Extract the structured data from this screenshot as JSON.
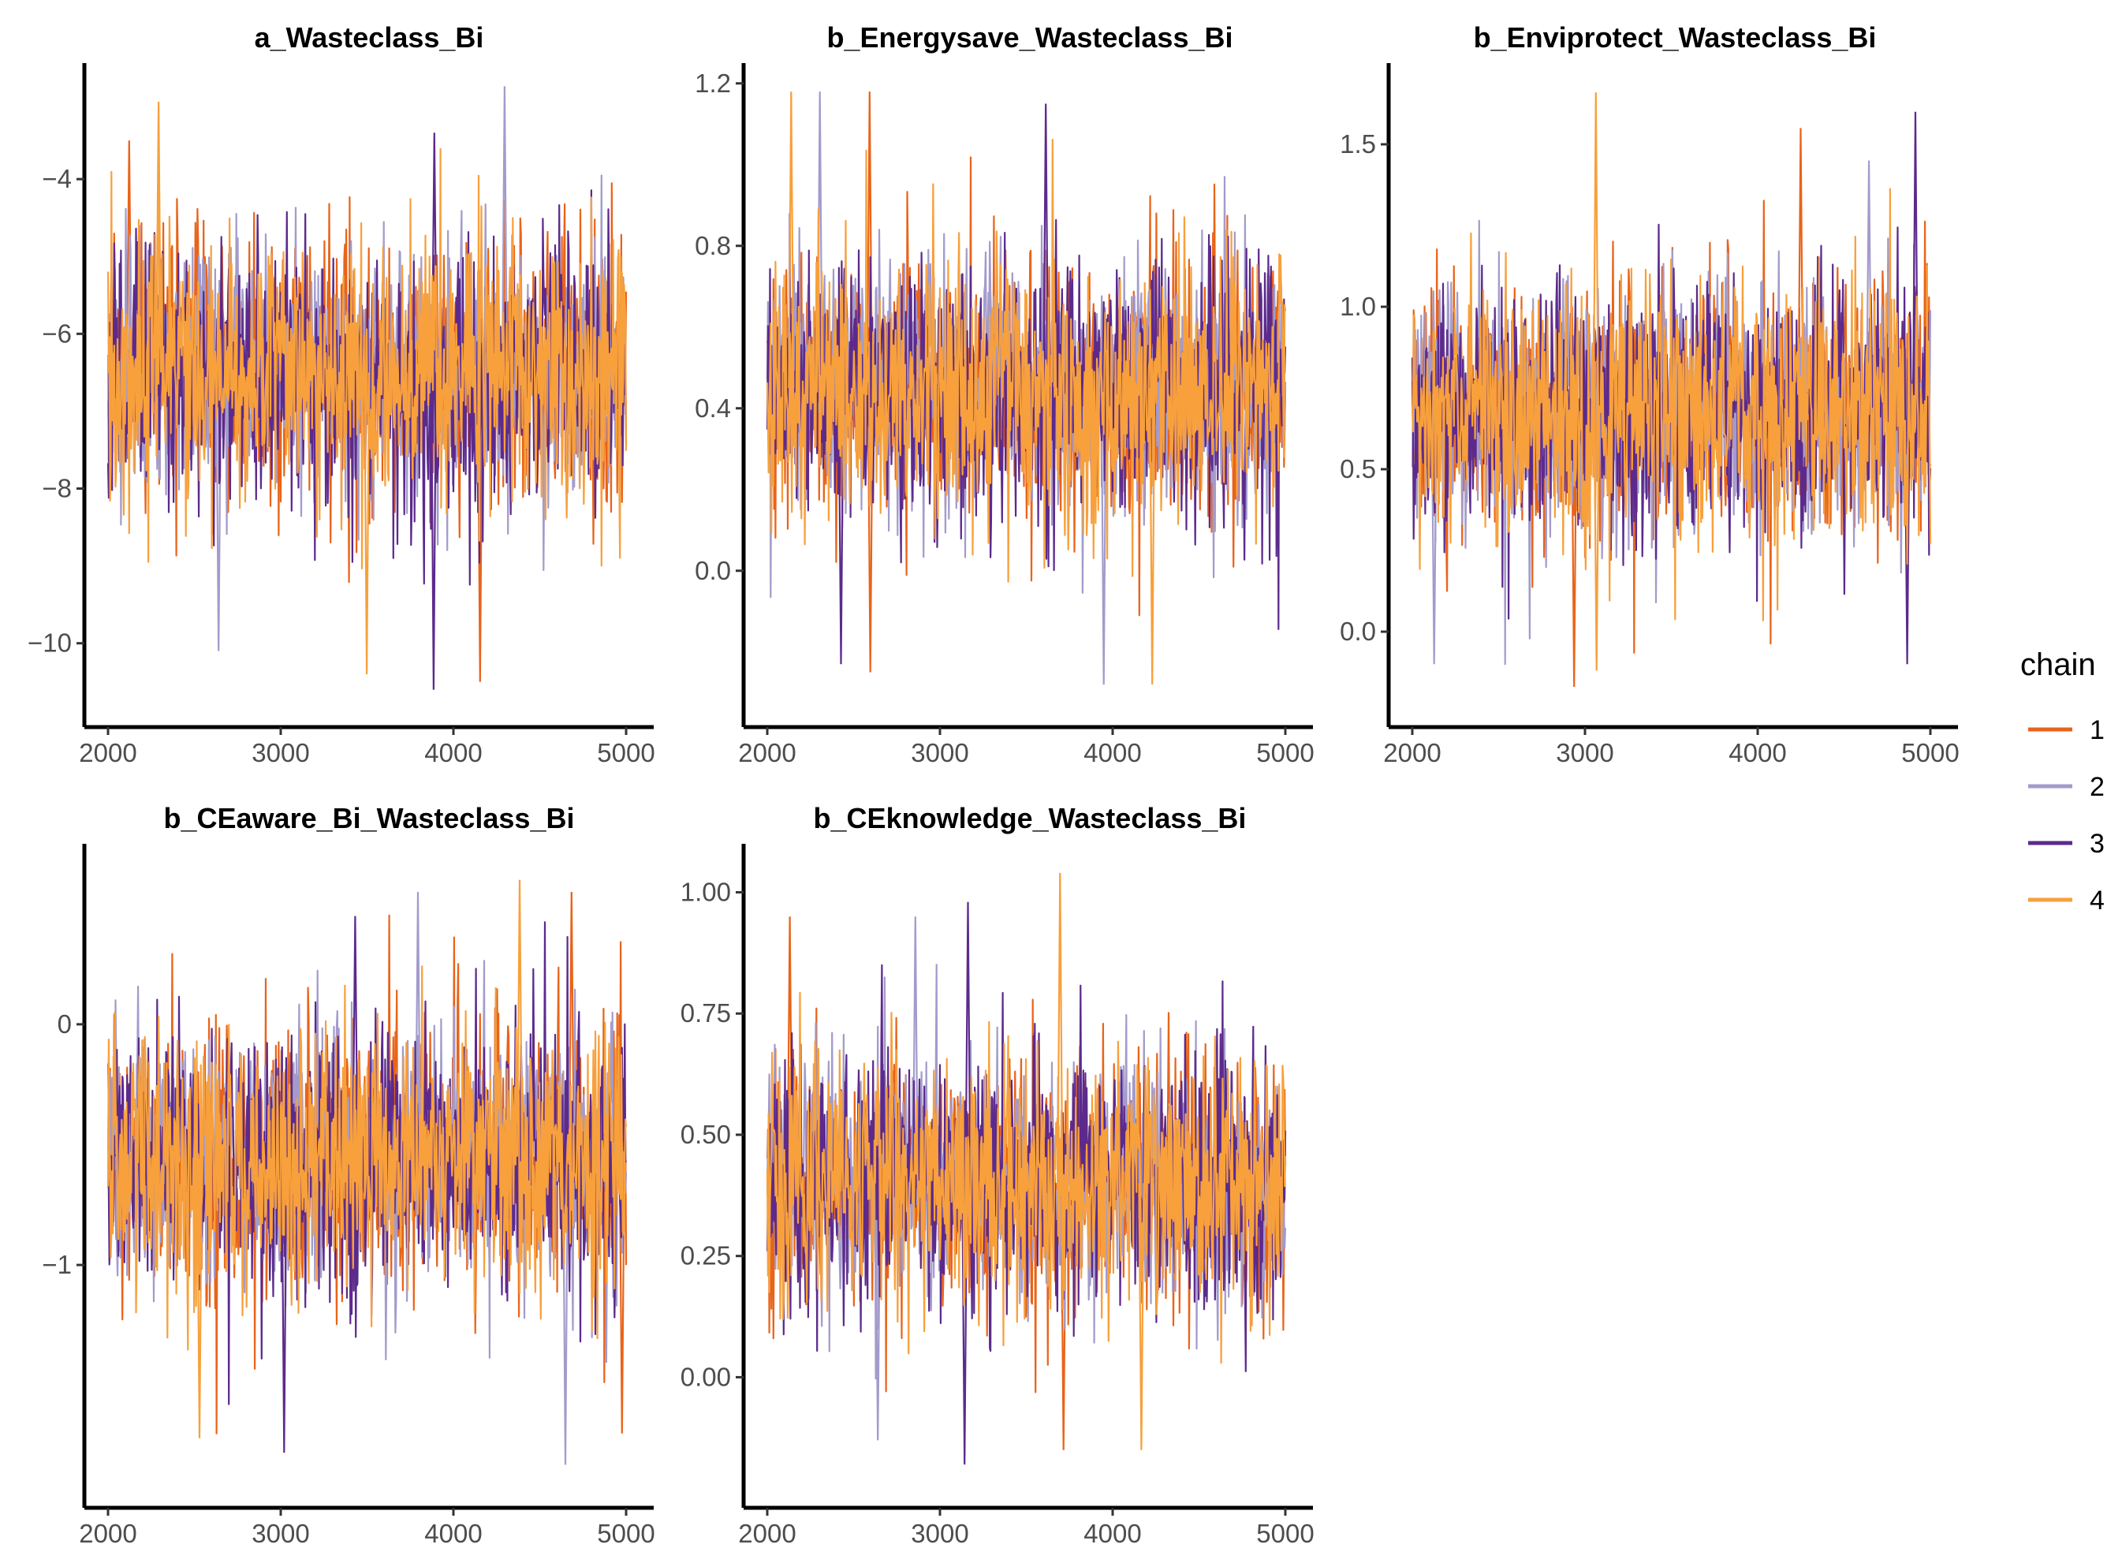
{
  "chart_data": {
    "type": "line",
    "figure_kind": "MCMC trace plots",
    "x_range": [
      2000,
      5000
    ],
    "x_ticks": [
      2000,
      3000,
      4000,
      5000
    ],
    "legend": {
      "title": "chain",
      "position": "right",
      "entries": [
        {
          "label": "1",
          "color": "#e8641a"
        },
        {
          "label": "2",
          "color": "#a39bcb"
        },
        {
          "label": "3",
          "color": "#5c2a8c"
        },
        {
          "label": "4",
          "color": "#f7a03c"
        }
      ]
    },
    "panels": [
      {
        "title": "a_Wasteclass_Bi",
        "ylim": [
          -10.9,
          -2.5
        ],
        "y_ticks": [
          -10,
          -8,
          -6,
          -4
        ],
        "y_tick_labels": [
          "−10",
          "−8",
          "−6",
          "−4"
        ],
        "series": [
          {
            "chain": "1",
            "mean": -6.5,
            "sd": 0.85,
            "min": -10.5,
            "max": -3.5
          },
          {
            "chain": "2",
            "mean": -6.5,
            "sd": 0.85,
            "min": -10.1,
            "max": -2.8
          },
          {
            "chain": "3",
            "mean": -6.5,
            "sd": 0.85,
            "min": -10.6,
            "max": -3.4
          },
          {
            "chain": "4",
            "mean": -6.5,
            "sd": 0.85,
            "min": -10.4,
            "max": -3.0
          }
        ]
      },
      {
        "title": "b_Energysave_Wasteclass_Bi",
        "ylim": [
          -0.35,
          1.25
        ],
        "y_ticks": [
          0.0,
          0.4,
          0.8,
          1.2
        ],
        "y_tick_labels": [
          "0.0",
          "0.4",
          "0.8",
          "1.2"
        ],
        "series": [
          {
            "chain": "1",
            "mean": 0.45,
            "sd": 0.16,
            "min": -0.25,
            "max": 1.18
          },
          {
            "chain": "2",
            "mean": 0.45,
            "sd": 0.16,
            "min": -0.28,
            "max": 1.18
          },
          {
            "chain": "3",
            "mean": 0.45,
            "sd": 0.16,
            "min": -0.23,
            "max": 1.15
          },
          {
            "chain": "4",
            "mean": 0.45,
            "sd": 0.16,
            "min": -0.28,
            "max": 1.18
          }
        ]
      },
      {
        "title": "b_Enviprotect_Wasteclass_Bi",
        "ylim": [
          -0.25,
          1.75
        ],
        "y_ticks": [
          0.0,
          0.5,
          1.0,
          1.5
        ],
        "y_tick_labels": [
          "0.0",
          "0.5",
          "1.0",
          "1.5"
        ],
        "series": [
          {
            "chain": "1",
            "mean": 0.68,
            "sd": 0.2,
            "min": -0.17,
            "max": 1.55
          },
          {
            "chain": "2",
            "mean": 0.68,
            "sd": 0.2,
            "min": -0.1,
            "max": 1.45
          },
          {
            "chain": "3",
            "mean": 0.68,
            "sd": 0.2,
            "min": -0.1,
            "max": 1.6
          },
          {
            "chain": "4",
            "mean": 0.68,
            "sd": 0.2,
            "min": -0.12,
            "max": 1.66
          }
        ]
      },
      {
        "title": "b_CEaware_Bi_Wasteclass_Bi",
        "ylim": [
          -1.95,
          0.75
        ],
        "y_ticks": [
          -1,
          0
        ],
        "y_tick_labels": [
          "−1",
          "0"
        ],
        "series": [
          {
            "chain": "1",
            "mean": -0.55,
            "sd": 0.27,
            "min": -1.7,
            "max": 0.55
          },
          {
            "chain": "2",
            "mean": -0.55,
            "sd": 0.27,
            "min": -1.83,
            "max": 0.55
          },
          {
            "chain": "3",
            "mean": -0.55,
            "sd": 0.27,
            "min": -1.78,
            "max": 0.45
          },
          {
            "chain": "4",
            "mean": -0.55,
            "sd": 0.27,
            "min": -1.72,
            "max": 0.6
          }
        ]
      },
      {
        "title": "b_CEknowledge_Wasteclass_Bi",
        "ylim": [
          -0.24,
          1.1
        ],
        "y_ticks": [
          0.0,
          0.25,
          0.5,
          0.75,
          1.0
        ],
        "y_tick_labels": [
          "0.00",
          "0.25",
          "0.50",
          "0.75",
          "1.00"
        ],
        "series": [
          {
            "chain": "1",
            "mean": 0.4,
            "sd": 0.13,
            "min": -0.15,
            "max": 0.95
          },
          {
            "chain": "2",
            "mean": 0.4,
            "sd": 0.13,
            "min": -0.13,
            "max": 0.95
          },
          {
            "chain": "3",
            "mean": 0.4,
            "sd": 0.13,
            "min": -0.18,
            "max": 0.98
          },
          {
            "chain": "4",
            "mean": 0.4,
            "sd": 0.13,
            "min": -0.15,
            "max": 1.04
          }
        ]
      }
    ]
  }
}
